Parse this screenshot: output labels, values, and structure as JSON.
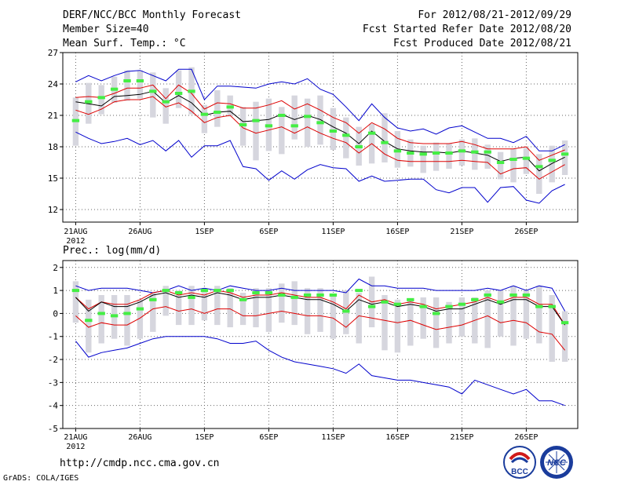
{
  "header": {
    "title": "DERF/NCC/BCC Monthly Forecast",
    "member_size": "Member Size=40",
    "variable1": "Mean Surf. Temp.: °C",
    "fcst_period": "For 2012/08/21-2012/09/29",
    "fcst_started": "Fcst Started Refer Date 2012/08/20",
    "fcst_produced": "Fcst Produced Date 2012/08/21"
  },
  "footer": {
    "url": "http://cmdp.ncc.cma.gov.cn",
    "grads": "GrADS: COLA/IGES",
    "logo_bcc": "BCC",
    "logo_ncc": "NCC"
  },
  "colors": {
    "box": "#d6d6de",
    "median": "#44ee44",
    "envelope": "#0000cc",
    "spread": "#dd0000",
    "mean": "#000000",
    "grid": "#666666"
  },
  "chart_data": [
    {
      "type": "box",
      "title": "Mean Surf. Temp.: °C",
      "yticks": [
        12,
        15,
        18,
        21,
        24,
        27
      ],
      "ylim": [
        10.8,
        27
      ],
      "xlim": [
        0,
        40
      ],
      "xticks": [
        1,
        6,
        11,
        16,
        21,
        26,
        31,
        36
      ],
      "xtick_labels": [
        "21AUG",
        "26AUG",
        "1SEP",
        "6SEP",
        "11SEP",
        "16SEP",
        "21SEP",
        "26SEP"
      ],
      "xtick_year": "2012",
      "x": [
        1,
        2,
        3,
        4,
        5,
        6,
        7,
        8,
        9,
        10,
        11,
        12,
        13,
        14,
        15,
        16,
        17,
        18,
        19,
        20,
        21,
        22,
        23,
        24,
        25,
        26,
        27,
        28,
        29,
        30,
        31,
        32,
        33,
        34,
        35,
        36,
        37,
        38,
        39
      ],
      "series": {
        "box_low": [
          18.1,
          20.2,
          21.1,
          22.2,
          22.4,
          22.6,
          20.8,
          20.2,
          21.7,
          21.1,
          19.3,
          19.9,
          20.9,
          18.1,
          16.7,
          17.6,
          17.3,
          18.7,
          18.0,
          18.2,
          17.7,
          16.9,
          16.2,
          16.4,
          16.5,
          16.0,
          16.1,
          15.5,
          15.7,
          15.9,
          16.2,
          15.8,
          15.9,
          14.9,
          14.6,
          15.4,
          13.5,
          14.6,
          15.3
        ],
        "box_high": [
          22.7,
          24.1,
          23.9,
          24.7,
          25.3,
          25.3,
          25.1,
          23.6,
          25.3,
          25.6,
          22.0,
          23.4,
          22.9,
          21.8,
          22.3,
          22.6,
          21.8,
          22.9,
          22.6,
          22.9,
          21.7,
          20.8,
          19.9,
          20.2,
          21.2,
          19.5,
          18.7,
          18.1,
          18.4,
          18.3,
          18.7,
          18.8,
          18.2,
          17.5,
          17.8,
          17.9,
          17.3,
          18.1,
          18.6
        ],
        "median": [
          20.5,
          22.3,
          22.7,
          23.5,
          24.3,
          24.3,
          23.3,
          22.3,
          23.1,
          23.3,
          21.1,
          21.3,
          21.8,
          20.1,
          20.5,
          20.0,
          21.0,
          20.0,
          20.9,
          20.3,
          19.5,
          19.1,
          18.0,
          19.3,
          18.4,
          17.6,
          17.4,
          17.3,
          17.4,
          17.4,
          17.6,
          17.5,
          17.5,
          16.5,
          16.8,
          16.9,
          16.1,
          16.7,
          17.3
        ],
        "upper": [
          24.2,
          24.8,
          24.3,
          24.8,
          25.2,
          25.3,
          24.8,
          24.3,
          25.4,
          25.4,
          22.5,
          23.8,
          23.8,
          23.7,
          23.6,
          24.0,
          24.2,
          24.0,
          24.5,
          23.5,
          23.0,
          21.8,
          20.5,
          22.1,
          20.8,
          19.8,
          19.5,
          19.7,
          19.2,
          19.8,
          20.0,
          19.4,
          18.8,
          18.8,
          18.4,
          19.0,
          17.6,
          17.6,
          18.2
        ],
        "upper_sd": [
          22.7,
          22.8,
          22.7,
          23.1,
          23.6,
          23.6,
          23.9,
          22.6,
          23.9,
          23.1,
          21.6,
          22.2,
          22.1,
          21.7,
          21.7,
          22.0,
          22.4,
          21.6,
          22.1,
          21.5,
          20.8,
          20.3,
          19.3,
          20.3,
          19.7,
          18.8,
          18.4,
          18.3,
          18.3,
          18.3,
          18.5,
          18.2,
          17.8,
          17.8,
          17.8,
          18.0,
          16.7,
          17.2,
          17.7
        ],
        "mean": [
          22.3,
          22.1,
          21.9,
          22.8,
          22.9,
          23.0,
          23.3,
          22.2,
          22.9,
          22.2,
          21.0,
          21.3,
          21.4,
          20.4,
          20.5,
          20.6,
          21.1,
          20.6,
          21.0,
          20.6,
          19.9,
          19.3,
          18.3,
          19.5,
          18.5,
          17.8,
          17.6,
          17.5,
          17.5,
          17.4,
          17.6,
          17.4,
          17.2,
          16.6,
          16.9,
          17.0,
          15.7,
          16.4,
          17.0
        ],
        "lower_sd": [
          21.5,
          21.1,
          21.6,
          22.3,
          22.5,
          22.5,
          22.8,
          21.8,
          22.2,
          21.4,
          20.3,
          20.8,
          21.0,
          19.8,
          19.3,
          19.6,
          19.9,
          19.3,
          19.9,
          19.3,
          18.8,
          18.4,
          17.4,
          18.3,
          17.3,
          16.7,
          16.6,
          16.6,
          16.6,
          16.6,
          16.7,
          16.6,
          16.5,
          15.4,
          15.9,
          16.0,
          14.9,
          15.6,
          16.3
        ],
        "lower": [
          19.4,
          18.8,
          18.3,
          18.5,
          18.8,
          18.2,
          18.6,
          17.6,
          18.6,
          17.0,
          18.1,
          18.1,
          18.6,
          16.1,
          15.9,
          14.8,
          15.7,
          14.9,
          15.8,
          16.3,
          16.0,
          15.9,
          14.7,
          15.2,
          14.7,
          14.8,
          14.9,
          14.9,
          13.9,
          13.6,
          14.1,
          14.1,
          12.7,
          14.1,
          14.2,
          12.9,
          12.6,
          13.8,
          14.4
        ]
      }
    },
    {
      "type": "box",
      "title": "Prec.: log(mm/d)",
      "yticks": [
        -5,
        -4,
        -3,
        -2,
        -1,
        0,
        1,
        2
      ],
      "ylim": [
        -5,
        2.3
      ],
      "xlim": [
        0,
        40
      ],
      "xticks": [
        1,
        6,
        11,
        16,
        21,
        26,
        31,
        36
      ],
      "xtick_labels": [
        "21AUG",
        "26AUG",
        "1SEP",
        "6SEP",
        "11SEP",
        "16SEP",
        "21SEP",
        "26SEP"
      ],
      "xtick_year": "2012",
      "x": [
        1,
        2,
        3,
        4,
        5,
        6,
        7,
        8,
        9,
        10,
        11,
        12,
        13,
        14,
        15,
        16,
        17,
        18,
        19,
        20,
        21,
        22,
        23,
        24,
        25,
        26,
        27,
        28,
        29,
        30,
        31,
        32,
        33,
        34,
        35,
        36,
        37,
        38,
        39
      ],
      "series": {
        "box_low": [
          -0.4,
          -1.7,
          -1.3,
          -1.1,
          -1.4,
          -1.1,
          -0.8,
          -0.1,
          -0.5,
          -0.5,
          -0.3,
          -0.5,
          -0.6,
          -0.5,
          -0.6,
          -0.8,
          -0.4,
          -0.5,
          -0.9,
          -0.8,
          -1.1,
          -0.9,
          -1.3,
          -0.6,
          -1.6,
          -1.7,
          -1.4,
          -1.1,
          -1.5,
          -1.3,
          -1.0,
          -1.3,
          -1.5,
          -1.0,
          -1.4,
          -1.1,
          -1.3,
          -2.1,
          -2.1
        ],
        "box_high": [
          1.4,
          0.6,
          0.8,
          0.8,
          0.8,
          0.6,
          0.9,
          1.2,
          1.0,
          1.2,
          1.1,
          1.2,
          1.1,
          0.9,
          1.1,
          1.1,
          1.3,
          1.4,
          1.1,
          1.1,
          0.8,
          1.0,
          0.9,
          1.6,
          0.8,
          0.6,
          0.6,
          0.7,
          0.7,
          0.5,
          0.7,
          0.7,
          1.0,
          1.0,
          1.2,
          1.0,
          1.2,
          0.8,
          0.1
        ],
        "median": [
          1.0,
          -0.3,
          0.0,
          -0.1,
          0.0,
          0.2,
          0.6,
          1.0,
          0.9,
          0.7,
          1.0,
          1.0,
          1.0,
          0.6,
          0.9,
          0.9,
          0.8,
          0.7,
          0.8,
          0.8,
          0.8,
          0.1,
          1.0,
          0.3,
          0.5,
          0.4,
          0.6,
          0.3,
          0.0,
          0.3,
          0.4,
          0.6,
          0.8,
          0.5,
          0.8,
          0.8,
          0.3,
          0.3,
          -0.4
        ],
        "upper": [
          1.2,
          1.0,
          1.1,
          1.1,
          1.1,
          1.0,
          0.9,
          1.0,
          1.2,
          1.0,
          1.1,
          1.0,
          1.2,
          1.1,
          1.0,
          1.0,
          1.1,
          1.0,
          1.0,
          1.0,
          1.0,
          0.9,
          1.5,
          1.2,
          1.2,
          1.1,
          1.1,
          1.1,
          1.0,
          1.0,
          1.0,
          1.0,
          1.1,
          1.0,
          1.2,
          1.0,
          1.2,
          1.1,
          0.1
        ],
        "upper_sd": [
          0.7,
          0.2,
          0.5,
          0.4,
          0.4,
          0.6,
          0.9,
          1.0,
          0.8,
          0.9,
          0.8,
          1.0,
          0.9,
          0.7,
          0.8,
          0.8,
          0.9,
          0.8,
          0.7,
          0.7,
          0.5,
          0.2,
          0.8,
          0.5,
          0.6,
          0.4,
          0.5,
          0.4,
          0.2,
          0.3,
          0.4,
          0.5,
          0.7,
          0.5,
          0.7,
          0.7,
          0.4,
          0.4,
          -0.5
        ],
        "mean": [
          0.7,
          0.1,
          0.5,
          0.3,
          0.3,
          0.5,
          0.8,
          0.9,
          0.7,
          0.8,
          0.7,
          0.9,
          0.8,
          0.6,
          0.7,
          0.7,
          0.8,
          0.7,
          0.6,
          0.6,
          0.4,
          0.1,
          0.6,
          0.4,
          0.5,
          0.3,
          0.4,
          0.3,
          0.1,
          0.2,
          0.2,
          0.4,
          0.6,
          0.4,
          0.6,
          0.6,
          0.3,
          0.3,
          -0.5
        ],
        "lower_sd": [
          -0.1,
          -0.6,
          -0.4,
          -0.5,
          -0.5,
          -0.2,
          0.2,
          0.3,
          0.1,
          0.2,
          0.0,
          0.2,
          0.2,
          -0.1,
          -0.1,
          0.0,
          0.1,
          0.0,
          -0.1,
          -0.1,
          -0.2,
          -0.6,
          -0.1,
          -0.2,
          -0.3,
          -0.4,
          -0.3,
          -0.5,
          -0.7,
          -0.6,
          -0.5,
          -0.3,
          -0.1,
          -0.4,
          -0.3,
          -0.4,
          -0.8,
          -0.9,
          -1.6
        ],
        "lower": [
          -1.2,
          -1.9,
          -1.7,
          -1.6,
          -1.5,
          -1.3,
          -1.1,
          -1.0,
          -1.0,
          -1.0,
          -1.0,
          -1.1,
          -1.3,
          -1.3,
          -1.2,
          -1.6,
          -1.9,
          -2.1,
          -2.2,
          -2.3,
          -2.4,
          -2.6,
          -2.2,
          -2.7,
          -2.8,
          -2.9,
          -2.9,
          -3.0,
          -3.1,
          -3.2,
          -3.5,
          -2.9,
          -3.1,
          -3.3,
          -3.5,
          -3.3,
          -3.8,
          -3.8,
          -4.0
        ]
      }
    }
  ]
}
